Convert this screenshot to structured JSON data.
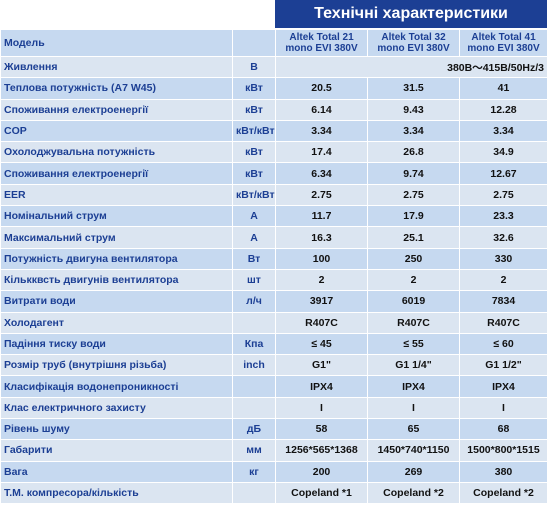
{
  "table": {
    "title": "Технічні характеристики",
    "rows": [
      {
        "label": "Модель",
        "values": [
          "Altek Total 21 mono EVI 380V",
          "Altek Total 32 mono EVI 380V",
          "Altek Total 41 mono EVI 380V"
        ]
      },
      {
        "label": "Живлення",
        "unit": "В",
        "span": "380В～415В/50Hz/3"
      },
      {
        "label": "Теплова потужність (A7 W45)",
        "unit": "кВт",
        "values": [
          "20.5",
          "31.5",
          "41"
        ]
      },
      {
        "label": "Споживання електроенергії",
        "unit": "кВт",
        "values": [
          "6.14",
          "9.43",
          "12.28"
        ]
      },
      {
        "label": "COP",
        "unit": "кВт/кВт",
        "values": [
          "3.34",
          "3.34",
          "3.34"
        ]
      },
      {
        "label": "Охолоджувальна потужність",
        "unit": "кВт",
        "values": [
          "17.4",
          "26.8",
          "34.9"
        ]
      },
      {
        "label": "Споживання електроенергії",
        "unit": "кВт",
        "values": [
          "6.34",
          "9.74",
          "12.67"
        ]
      },
      {
        "label": "EER",
        "unit": "кВт/кВт",
        "values": [
          "2.75",
          "2.75",
          "2.75"
        ]
      },
      {
        "label": "Номінальний струм",
        "unit": "A",
        "values": [
          "11.7",
          "17.9",
          "23.3"
        ]
      },
      {
        "label": "Максимальний струм",
        "unit": "A",
        "values": [
          "16.3",
          "25.1",
          "32.6"
        ]
      },
      {
        "label": "Потужність двигуна вентилятора",
        "unit": "Вт",
        "values": [
          "100",
          "250",
          "330"
        ]
      },
      {
        "label": "Кількквсть двигунів вентилятора",
        "unit": "шт",
        "values": [
          "2",
          "2",
          "2"
        ]
      },
      {
        "label": "Витрати води",
        "unit": "л/ч",
        "values": [
          "3917",
          "6019",
          "7834"
        ]
      },
      {
        "label": "Холодагент",
        "values": [
          "R407C",
          "R407C",
          "R407C"
        ]
      },
      {
        "label": "Падіння тиску води",
        "unit": "Кпа",
        "values": [
          "≤ 45",
          "≤ 55",
          "≤ 60"
        ]
      },
      {
        "label": "Розмір труб (внутрішня різьба)",
        "unit": "inch",
        "values": [
          "G1\"",
          "G1 1/4\"",
          "G1 1/2\""
        ]
      },
      {
        "label": "Класифікація водонепроникності",
        "values": [
          "IPX4",
          "IPX4",
          "IPX4"
        ]
      },
      {
        "label": "Клас електричного захисту",
        "values": [
          "I",
          "I",
          "I"
        ]
      },
      {
        "label": "Рівень шуму",
        "unit": "дБ",
        "values": [
          "58",
          "65",
          "68"
        ]
      },
      {
        "label": "Габарити",
        "unit": "мм",
        "values": [
          "1256*565*1368",
          "1450*740*1150",
          "1500*800*1515"
        ]
      },
      {
        "label": "Вага",
        "unit": "кг",
        "values": [
          "200",
          "269",
          "380"
        ]
      },
      {
        "label": "Т.М. компресора/кількість",
        "values": [
          "Copeland *1",
          "Copeland *2",
          "Copeland *2"
        ]
      }
    ]
  }
}
